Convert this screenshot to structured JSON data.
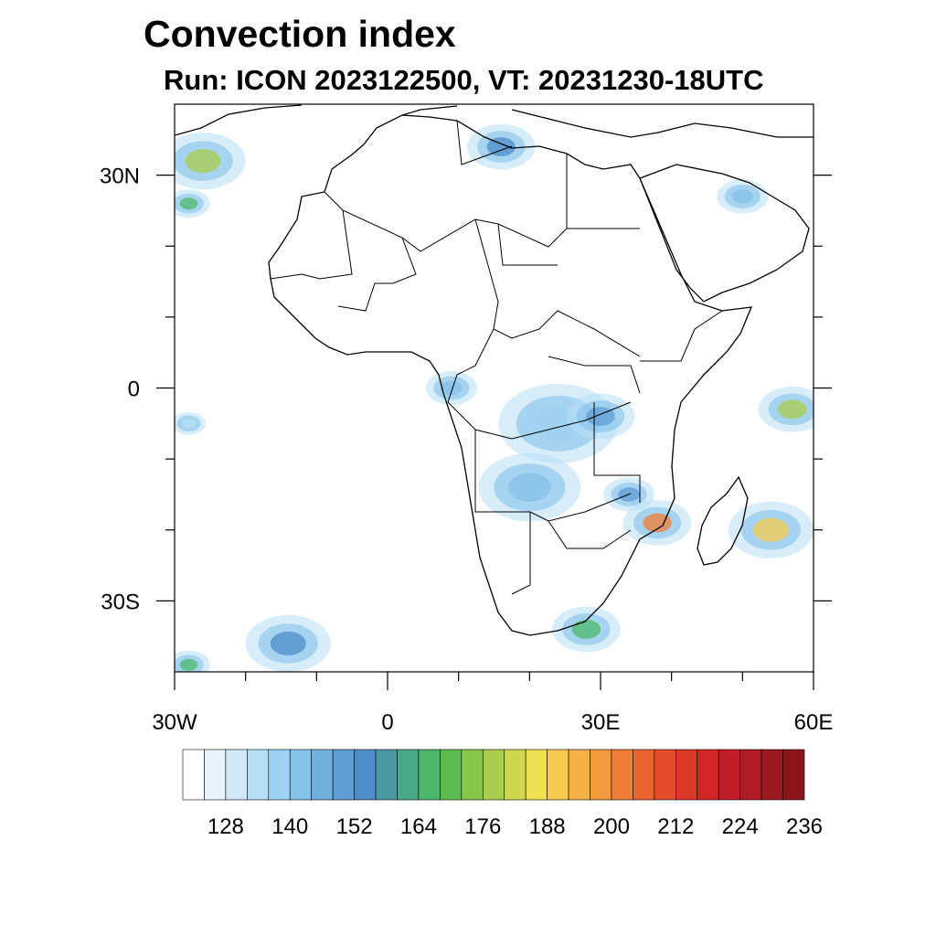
{
  "title": "Convection index",
  "subtitle": "Run: ICON 2023122500,  VT: 20231230-18UTC",
  "map": {
    "lon_range": [
      -30,
      60
    ],
    "lat_range": [
      -40,
      40
    ],
    "lat_ticks": [
      {
        "value": 30,
        "label": "30N"
      },
      {
        "value": 0,
        "label": "0"
      },
      {
        "value": -30,
        "label": "30S"
      }
    ],
    "lon_ticks": [
      {
        "value": -30,
        "label": "30W"
      },
      {
        "value": 0,
        "label": "0"
      },
      {
        "value": 30,
        "label": "30E"
      },
      {
        "value": 60,
        "label": "60E"
      }
    ]
  },
  "colorbar": {
    "levels": [
      124,
      128,
      132,
      136,
      140,
      144,
      148,
      152,
      156,
      160,
      164,
      168,
      172,
      176,
      180,
      184,
      188,
      192,
      196,
      200,
      204,
      208,
      212,
      216,
      220,
      224,
      228,
      232,
      236
    ],
    "labels": [
      "128",
      "140",
      "152",
      "164",
      "176",
      "188",
      "200",
      "212",
      "224",
      "236"
    ],
    "colors": [
      "#ffffff",
      "#e8f4fc",
      "#cfe9f8",
      "#b6dff5",
      "#9dd3f2",
      "#86c2ea",
      "#72b0e0",
      "#5f9ed6",
      "#4e8ec9",
      "#4a9aa6",
      "#4aa887",
      "#4cb86a",
      "#5cbd4f",
      "#86c64a",
      "#aacd4c",
      "#cfd74e",
      "#ece154",
      "#f6cc4f",
      "#f6b248",
      "#f49a3e",
      "#ef7e36",
      "#ea6430",
      "#e34d2a",
      "#dc3628",
      "#d12626",
      "#c21e27",
      "#b01a24",
      "#9e1820",
      "#8c141b"
    ]
  },
  "fields": [
    {
      "lon": -26,
      "lat": 32,
      "r": 5,
      "v": 176
    },
    {
      "lon": -28,
      "lat": 26,
      "r": 2.5,
      "v": 164
    },
    {
      "lon": 16,
      "lat": 34,
      "r": 4,
      "v": 152
    },
    {
      "lon": 50,
      "lat": 27,
      "r": 3,
      "v": 140
    },
    {
      "lon": 9,
      "lat": 0,
      "r": 3,
      "v": 140
    },
    {
      "lon": 24,
      "lat": -5,
      "r": 7,
      "v": 136
    },
    {
      "lon": 30,
      "lat": -4,
      "r": 4,
      "v": 148
    },
    {
      "lon": 20,
      "lat": -14,
      "r": 6,
      "v": 140
    },
    {
      "lon": 34,
      "lat": -15,
      "r": 3,
      "v": 148
    },
    {
      "lon": 38,
      "lat": -19,
      "r": 4,
      "v": 200
    },
    {
      "lon": 54,
      "lat": -20,
      "r": 5,
      "v": 188
    },
    {
      "lon": 57,
      "lat": -3,
      "r": 4,
      "v": 176
    },
    {
      "lon": 28,
      "lat": -34,
      "r": 4,
      "v": 164
    },
    {
      "lon": -14,
      "lat": -36,
      "r": 5,
      "v": 152
    },
    {
      "lon": -28,
      "lat": -39,
      "r": 2.5,
      "v": 164
    },
    {
      "lon": -28,
      "lat": -5,
      "r": 2,
      "v": 132
    }
  ]
}
